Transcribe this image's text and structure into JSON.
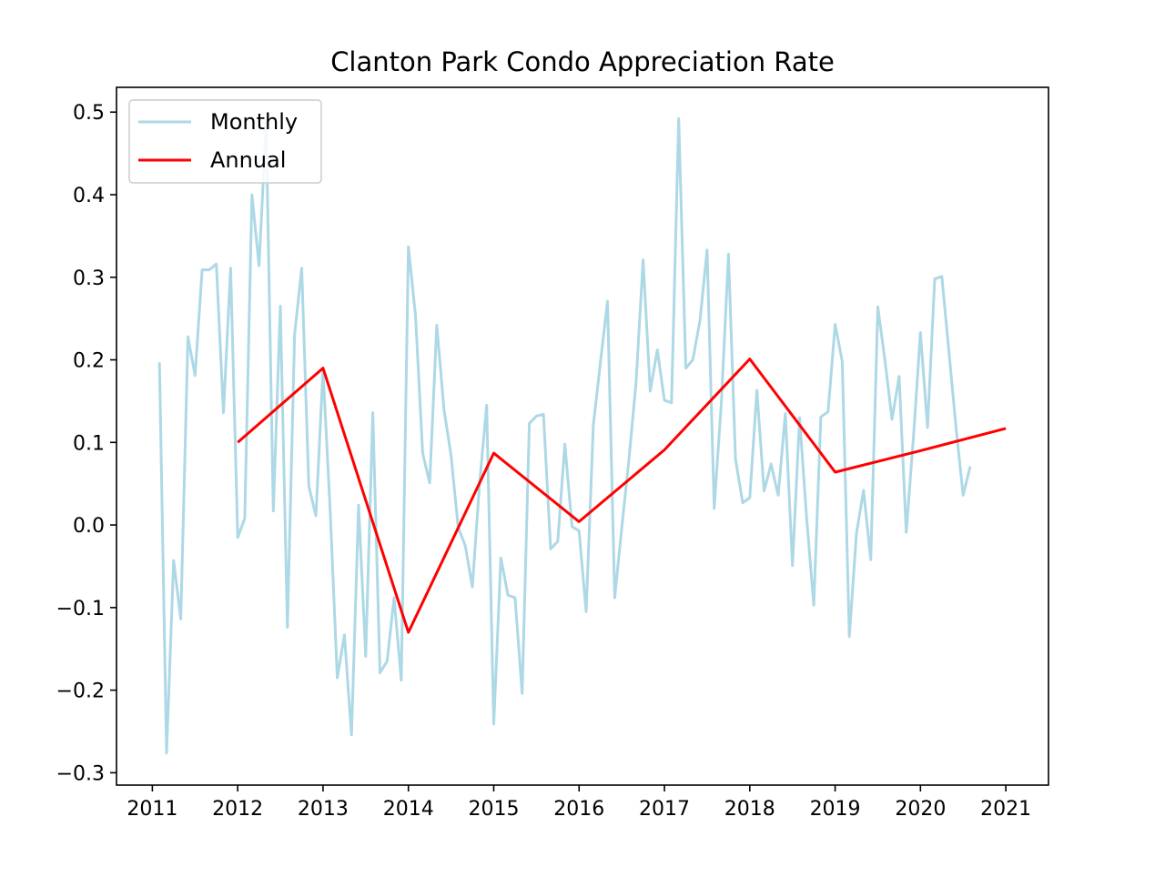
{
  "chart_data": {
    "type": "line",
    "title": "Clanton Park Condo Appreciation Rate",
    "xlabel": "",
    "ylabel": "",
    "xlim": [
      2010.58,
      2021.5
    ],
    "ylim": [
      -0.315,
      0.53
    ],
    "x_ticks": [
      2011,
      2012,
      2013,
      2014,
      2015,
      2016,
      2017,
      2018,
      2019,
      2020,
      2021
    ],
    "x_tick_labels": [
      "2011",
      "2012",
      "2013",
      "2014",
      "2015",
      "2016",
      "2017",
      "2018",
      "2019",
      "2020",
      "2021"
    ],
    "y_ticks": [
      -0.3,
      -0.2,
      -0.1,
      0.0,
      0.1,
      0.2,
      0.3,
      0.4,
      0.5
    ],
    "y_tick_labels": [
      "−0.3",
      "−0.2",
      "−0.1",
      "0.0",
      "0.1",
      "0.2",
      "0.3",
      "0.4",
      "0.5"
    ],
    "grid": false,
    "legend_position": "top-left",
    "series": [
      {
        "name": "Monthly",
        "color": "#add8e6",
        "x": [
          2011.083,
          2011.167,
          2011.25,
          2011.333,
          2011.417,
          2011.5,
          2011.583,
          2011.667,
          2011.75,
          2011.833,
          2011.917,
          2012.0,
          2012.083,
          2012.167,
          2012.25,
          2012.333,
          2012.417,
          2012.5,
          2012.583,
          2012.667,
          2012.75,
          2012.833,
          2012.917,
          2013.0,
          2013.083,
          2013.167,
          2013.25,
          2013.333,
          2013.417,
          2013.5,
          2013.583,
          2013.667,
          2013.75,
          2013.833,
          2013.917,
          2014.0,
          2014.083,
          2014.167,
          2014.25,
          2014.333,
          2014.417,
          2014.5,
          2014.583,
          2014.667,
          2014.75,
          2014.833,
          2014.917,
          2015.0,
          2015.083,
          2015.167,
          2015.25,
          2015.333,
          2015.417,
          2015.5,
          2015.583,
          2015.667,
          2015.75,
          2015.833,
          2015.917,
          2016.0,
          2016.083,
          2016.167,
          2016.25,
          2016.333,
          2016.417,
          2016.5,
          2016.583,
          2016.667,
          2016.75,
          2016.833,
          2016.917,
          2017.0,
          2017.083,
          2017.167,
          2017.25,
          2017.333,
          2017.417,
          2017.5,
          2017.583,
          2017.667,
          2017.75,
          2017.833,
          2017.917,
          2018.0,
          2018.083,
          2018.167,
          2018.25,
          2018.333,
          2018.417,
          2018.5,
          2018.583,
          2018.667,
          2018.75,
          2018.833,
          2018.917,
          2019.0,
          2019.083,
          2019.167,
          2019.25,
          2019.333,
          2019.417,
          2019.5,
          2019.583,
          2019.667,
          2019.75,
          2019.833,
          2019.917,
          2020.0,
          2020.083,
          2020.167,
          2020.25,
          2020.333,
          2020.417,
          2020.5,
          2020.583
        ],
        "values": [
          0.197,
          -0.276,
          -0.043,
          -0.114,
          0.228,
          0.181,
          0.309,
          0.309,
          0.316,
          0.136,
          0.311,
          -0.015,
          0.008,
          0.4,
          0.314,
          0.487,
          0.017,
          0.265,
          -0.124,
          0.231,
          0.311,
          0.047,
          0.011,
          0.188,
          0.019,
          -0.185,
          -0.133,
          -0.254,
          0.024,
          -0.159,
          0.136,
          -0.179,
          -0.165,
          -0.088,
          -0.188,
          0.337,
          0.254,
          0.087,
          0.051,
          0.242,
          0.14,
          0.084,
          -0.003,
          -0.025,
          -0.075,
          0.049,
          0.145,
          -0.241,
          -0.04,
          -0.085,
          -0.088,
          -0.204,
          0.123,
          0.132,
          0.134,
          -0.029,
          -0.02,
          0.098,
          -0.002,
          -0.007,
          -0.105,
          0.121,
          0.197,
          0.271,
          -0.088,
          -0.004,
          0.078,
          0.172,
          0.321,
          0.162,
          0.212,
          0.151,
          0.148,
          0.492,
          0.19,
          0.2,
          0.248,
          0.333,
          0.02,
          0.149,
          0.328,
          0.08,
          0.027,
          0.033,
          0.163,
          0.041,
          0.074,
          0.036,
          0.135,
          -0.049,
          0.13,
          0.008,
          -0.097,
          0.131,
          0.137,
          0.243,
          0.198,
          -0.135,
          -0.01,
          0.042,
          -0.042,
          0.264,
          0.2,
          0.128,
          0.18,
          -0.009,
          0.106,
          0.233,
          0.118,
          0.298,
          0.301,
          0.21,
          0.118,
          0.036,
          0.071
        ]
      },
      {
        "name": "Annual",
        "color": "#ff0000",
        "x": [
          2012,
          2013,
          2014,
          2015,
          2016,
          2017,
          2018,
          2019,
          2020,
          2021
        ],
        "values": [
          0.1,
          0.19,
          -0.13,
          0.087,
          0.004,
          0.091,
          0.201,
          0.064,
          0.09,
          0.117
        ]
      }
    ]
  }
}
